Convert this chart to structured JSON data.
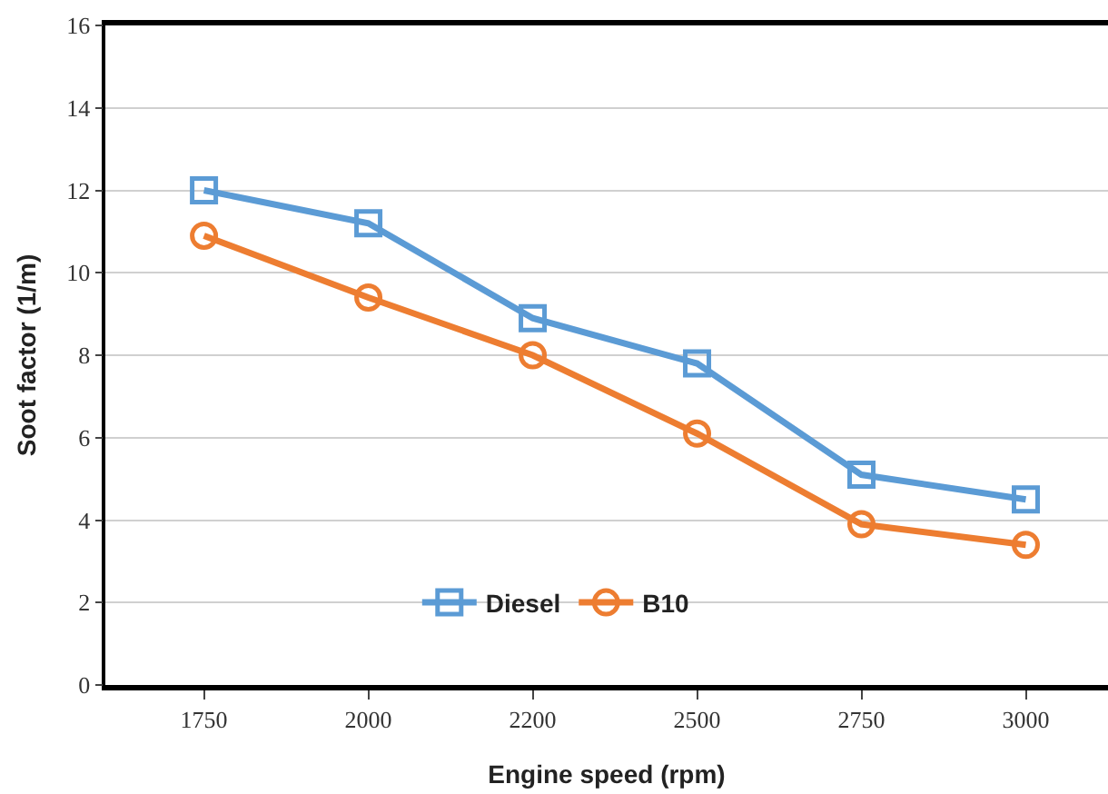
{
  "chart_data": {
    "type": "line",
    "xlabel": "Engine speed (rpm)",
    "ylabel": "Soot factor (1/m)",
    "categories": [
      "1750",
      "2000",
      "2200",
      "2500",
      "2750",
      "3000"
    ],
    "series": [
      {
        "name": "Diesel",
        "color": "#5b9bd5",
        "marker": "square",
        "values": [
          12.0,
          11.2,
          8.9,
          7.8,
          5.1,
          4.5
        ]
      },
      {
        "name": "B10",
        "color": "#ed7d31",
        "marker": "circle",
        "values": [
          10.9,
          9.4,
          8.0,
          6.1,
          3.9,
          3.4
        ]
      }
    ],
    "ylim": [
      0,
      16
    ],
    "yticks": [
      0,
      2,
      4,
      6,
      8,
      10,
      12,
      14,
      16
    ],
    "grid": "y",
    "legend": "bottom",
    "line_style": "solid"
  }
}
